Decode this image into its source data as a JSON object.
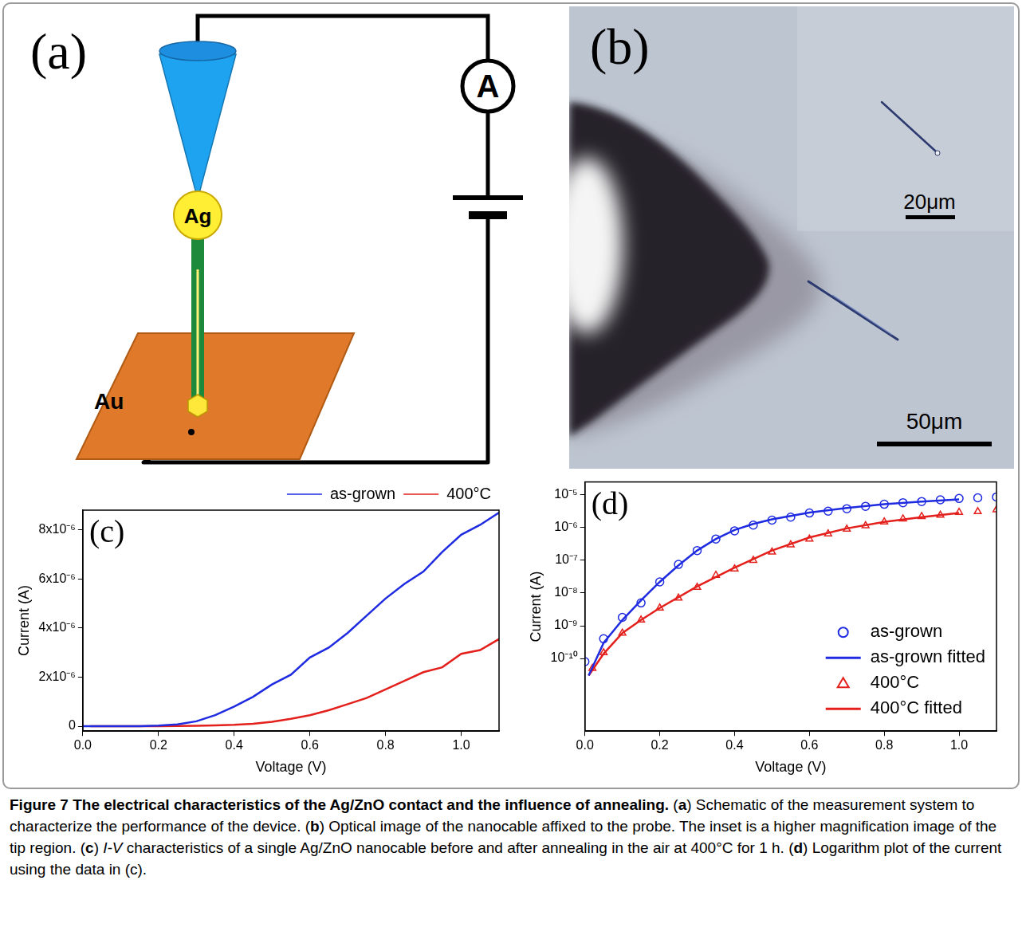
{
  "panel_a": {
    "label": "(a)",
    "tip": "Ag",
    "substrate": "Au",
    "meter": "A"
  },
  "panel_b": {
    "label": "(b)",
    "scale_main": "50μm",
    "scale_inset": "20μm"
  },
  "chart_data": [
    {
      "type": "line",
      "panel_label": "(c)",
      "x_label": "Voltage (V)",
      "y_label": "Current (A)",
      "xlim": [
        0,
        1.1
      ],
      "xticks": [
        {
          "value": 0,
          "label": "0.0"
        },
        0.2,
        0.4,
        0.6,
        0.8,
        {
          "value": 1,
          "label": "1.0"
        }
      ],
      "ylim": [
        -2e-07,
        8.8e-06
      ],
      "yticks": [
        0,
        {
          "value": 2e-06,
          "label": "2x10⁻⁶"
        },
        {
          "value": 4e-06,
          "label": "4x10⁻⁶"
        },
        {
          "value": 6e-06,
          "label": "6x10⁻⁶"
        },
        {
          "value": 8e-06,
          "label": "8x10⁻⁶"
        }
      ],
      "grid": false,
      "legend": "top",
      "series": [
        {
          "name": "as-grown",
          "color": "#1f2be0",
          "marker": "none",
          "line_style": "solid",
          "x": [
            0,
            0.05,
            0.1,
            0.15,
            0.2,
            0.25,
            0.3,
            0.35,
            0.4,
            0.45,
            0.5,
            0.55,
            0.6,
            0.65,
            0.7,
            0.75,
            0.8,
            0.85,
            0.9,
            0.95,
            1.0,
            1.05,
            1.1
          ],
          "values": [
            8e-11,
            4e-10,
            1.8e-09,
            5e-09,
            2.2e-08,
            7.5e-08,
            2e-07,
            4.5e-07,
            8e-07,
            1.2e-06,
            1.7e-06,
            2.1e-06,
            2.8e-06,
            3.2e-06,
            3.8e-06,
            4.5e-06,
            5.2e-06,
            5.8e-06,
            6.3e-06,
            7.1e-06,
            7.8e-06,
            8.2e-06,
            8.7e-06
          ]
        },
        {
          "name": "400°C",
          "color": "#e3201c",
          "marker": "none",
          "line_style": "solid",
          "x": [
            0.02,
            0.05,
            0.1,
            0.15,
            0.2,
            0.25,
            0.3,
            0.35,
            0.4,
            0.45,
            0.5,
            0.55,
            0.6,
            0.65,
            0.7,
            0.75,
            0.8,
            0.85,
            0.9,
            0.95,
            1.0,
            1.05,
            1.1
          ],
          "values": [
            5e-11,
            1.5e-10,
            6e-10,
            1.5e-09,
            3.5e-09,
            7e-09,
            1.5e-08,
            3.5e-08,
            5.5e-08,
            1e-07,
            1.8e-07,
            3e-07,
            4.5e-07,
            6.5e-07,
            9e-07,
            1.15e-06,
            1.5e-06,
            1.85e-06,
            2.2e-06,
            2.4e-06,
            2.95e-06,
            3.1e-06,
            3.55e-06
          ]
        }
      ]
    },
    {
      "type": "line",
      "panel_label": "(d)",
      "x_label": "Voltage (V)",
      "y_label": "Current (A)",
      "log": "y",
      "xlim": [
        0,
        1.1
      ],
      "xticks": [
        {
          "value": 0,
          "label": "0.0"
        },
        0.2,
        0.4,
        0.6,
        0.8,
        {
          "value": 1,
          "label": "1.0"
        }
      ],
      "ylim": [
        6e-13,
        2.5e-05
      ],
      "yticks": [
        {
          "value": 1e-10,
          "label": "10⁻¹⁰"
        },
        {
          "value": 1e-09,
          "label": "10⁻⁹"
        },
        {
          "value": 1e-08,
          "label": "10⁻⁸"
        },
        {
          "value": 1e-07,
          "label": "10⁻⁷"
        },
        {
          "value": 1e-06,
          "label": "10⁻⁶"
        },
        {
          "value": 1e-05,
          "label": "10⁻⁵"
        }
      ],
      "grid": false,
      "legend": "lower right",
      "series": [
        {
          "name": "as-grown",
          "color": "#1f2be0",
          "marker": "circle",
          "line_style": "none",
          "x": [
            0,
            0.05,
            0.1,
            0.15,
            0.2,
            0.25,
            0.3,
            0.35,
            0.4,
            0.45,
            0.5,
            0.55,
            0.6,
            0.65,
            0.7,
            0.75,
            0.8,
            0.85,
            0.9,
            0.95,
            1.0,
            1.05,
            1.1
          ],
          "values": [
            8e-11,
            4e-10,
            1.8e-09,
            5e-09,
            2.2e-08,
            7.5e-08,
            2e-07,
            4.5e-07,
            8e-07,
            1.2e-06,
            1.7e-06,
            2.1e-06,
            2.8e-06,
            3.2e-06,
            3.8e-06,
            4.5e-06,
            5.2e-06,
            5.8e-06,
            6.3e-06,
            7.1e-06,
            7.8e-06,
            8.2e-06,
            8.7e-06
          ]
        },
        {
          "name": "as-grown fitted",
          "color": "#1f2be0",
          "marker": "none",
          "line_style": "solid",
          "x": [
            0.01,
            0.05,
            0.1,
            0.15,
            0.2,
            0.25,
            0.3,
            0.35,
            0.4,
            0.45,
            0.5,
            0.6,
            0.7,
            0.8,
            0.9,
            1.0
          ],
          "values": [
            3e-11,
            3e-10,
            1.5e-09,
            6e-09,
            2.2e-08,
            7e-08,
            2e-07,
            4.5e-07,
            8.5e-07,
            1.3e-06,
            1.8e-06,
            2.9e-06,
            4e-06,
            5.2e-06,
            6.3e-06,
            7.3e-06
          ]
        },
        {
          "name": "400°C",
          "color": "#e3201c",
          "marker": "triangle",
          "line_style": "none",
          "x": [
            0.02,
            0.05,
            0.1,
            0.15,
            0.2,
            0.25,
            0.3,
            0.35,
            0.4,
            0.45,
            0.5,
            0.55,
            0.6,
            0.65,
            0.7,
            0.75,
            0.8,
            0.85,
            0.9,
            0.95,
            1.0,
            1.05,
            1.1
          ],
          "values": [
            5e-11,
            1.5e-10,
            6e-10,
            1.5e-09,
            3.5e-09,
            7e-09,
            1.5e-08,
            3.5e-08,
            5.5e-08,
            1e-07,
            1.8e-07,
            3e-07,
            4.5e-07,
            6.5e-07,
            9e-07,
            1.15e-06,
            1.5e-06,
            1.85e-06,
            2.2e-06,
            2.4e-06,
            2.95e-06,
            3.1e-06,
            3.55e-06
          ]
        },
        {
          "name": "400°C fitted",
          "color": "#e3201c",
          "marker": "none",
          "line_style": "solid",
          "x": [
            0.01,
            0.05,
            0.1,
            0.15,
            0.2,
            0.3,
            0.4,
            0.5,
            0.6,
            0.7,
            0.8,
            0.9,
            1.0
          ],
          "values": [
            3e-11,
            1.4e-10,
            6e-10,
            1.5e-09,
            3.5e-09,
            1.6e-08,
            6e-08,
            2e-07,
            5e-07,
            9.5e-07,
            1.5e-06,
            2.1e-06,
            2.8e-06
          ]
        }
      ]
    }
  ],
  "caption": {
    "segments": [
      {
        "text": "Figure 7 The electrical characteristics of the Ag/ZnO contact and the influence of annealing.",
        "bold": true
      },
      {
        "text": " ("
      },
      {
        "text": "a",
        "bold": true
      },
      {
        "text": ") Schematic of the measurement system to characterize the performance of the device. ("
      },
      {
        "text": "b",
        "bold": true
      },
      {
        "text": ") Optical image of the nanocable affixed to the probe. The inset is a higher magnification image of the tip region. ("
      },
      {
        "text": "c",
        "bold": true
      },
      {
        "text": ") "
      },
      {
        "text": "I-V",
        "italic": true
      },
      {
        "text": " characteristics of a single Ag/ZnO nanocable before and after annealing in the air at 400°C for 1 h. ("
      },
      {
        "text": "d",
        "bold": true
      },
      {
        "text": ") Logarithm plot of the current using the data in (c)."
      }
    ]
  }
}
